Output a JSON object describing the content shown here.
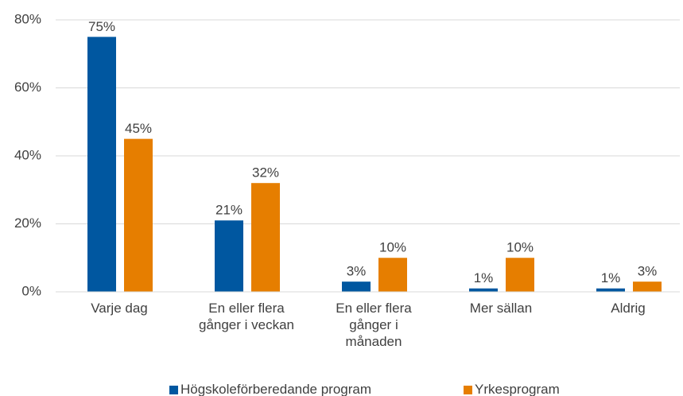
{
  "chart_data": {
    "type": "bar",
    "categories": [
      "Varje dag",
      "En eller flera gånger i veckan",
      "En eller flera gånger i månaden",
      "Mer sällan",
      "Aldrig"
    ],
    "series": [
      {
        "name": "Högskoleförberedande program",
        "color": "#0057a0",
        "values": [
          75,
          21,
          3,
          1,
          1
        ],
        "value_labels": [
          "75%",
          "21%",
          "3%",
          "1%",
          "1%"
        ]
      },
      {
        "name": "Yrkesprogram",
        "color": "#e67e00",
        "values": [
          45,
          32,
          10,
          10,
          3
        ],
        "value_labels": [
          "45%",
          "32%",
          "10%",
          "10%",
          "3%"
        ]
      }
    ],
    "ylim": [
      0,
      80
    ],
    "yticks": [
      {
        "value": 0,
        "label": "0%"
      },
      {
        "value": 20,
        "label": "20%"
      },
      {
        "value": 40,
        "label": "40%"
      },
      {
        "value": 60,
        "label": "60%"
      },
      {
        "value": 80,
        "label": "80%"
      }
    ],
    "grid": true,
    "legend": "bottom"
  }
}
